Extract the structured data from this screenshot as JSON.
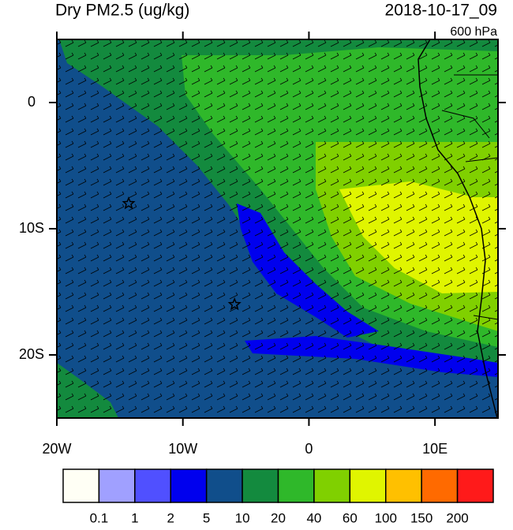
{
  "map": {
    "title": "Dry PM2.5 (ug/kg)",
    "valid_time": "2018-10-17_09",
    "level": "600 hPa",
    "lonlim": [
      -20,
      15
    ],
    "latlim": [
      -25,
      5
    ],
    "lonticks": [
      {
        "value": -20,
        "label": "20W"
      },
      {
        "value": -10,
        "label": "10W"
      },
      0,
      {
        "value": 10,
        "label": "10E"
      }
    ],
    "latticks": [
      0,
      {
        "value": -10,
        "label": "10S"
      },
      {
        "value": -20,
        "label": "20S"
      }
    ],
    "stations": [
      {
        "lon": -14.3,
        "lat": -8
      },
      {
        "lon": -5.9,
        "lat": -16
      }
    ]
  },
  "colorbar": {
    "levels": [
      0.1,
      1,
      2,
      5,
      10,
      20,
      40,
      60,
      100,
      150,
      200
    ],
    "colors": [
      "#fffff5",
      "#a0a0ff",
      "#5050ff",
      "#0000ee",
      "#104e8b",
      "#138a3e",
      "#2fb82a",
      "#80d000",
      "#e0f500",
      "#ffc000",
      "#ff6a00",
      "#ff1a1a"
    ]
  }
}
